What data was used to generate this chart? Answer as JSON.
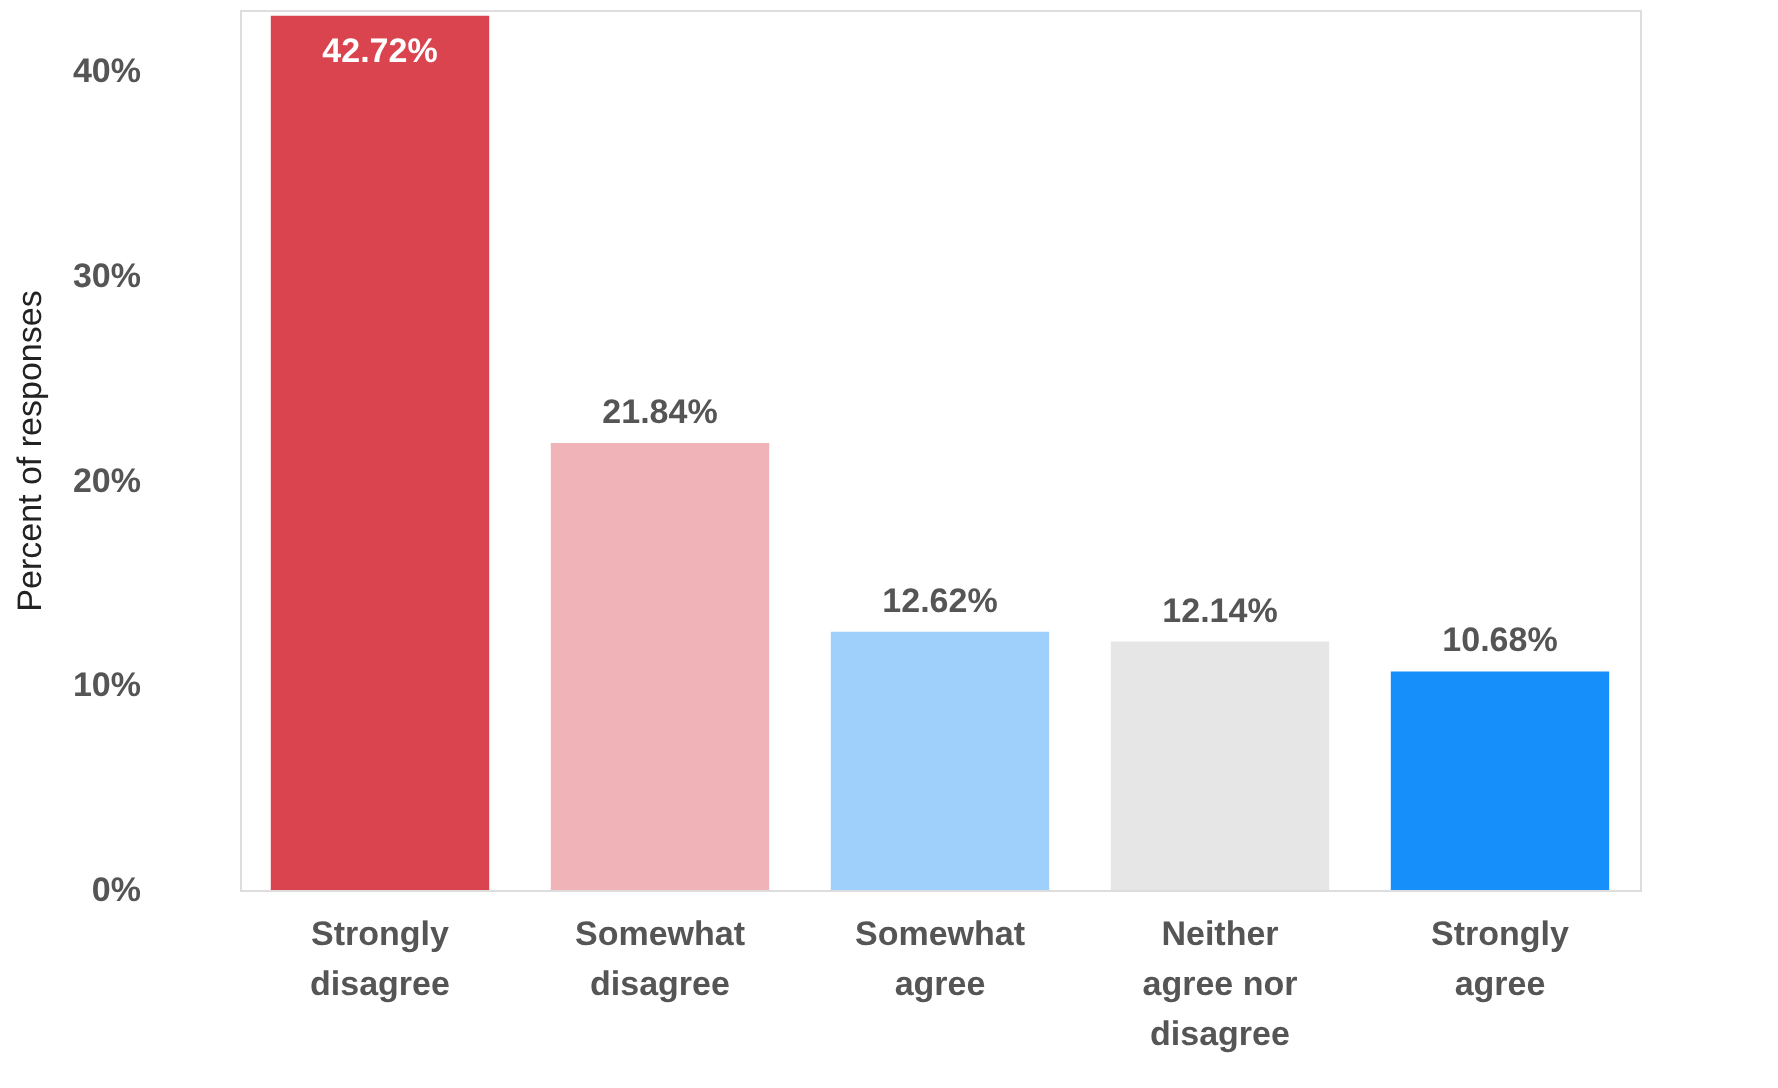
{
  "chart_data": {
    "type": "bar",
    "ylabel": "Percent of responses",
    "categories": [
      "Strongly disagree",
      "Somewhat disagree",
      "Somewhat agree",
      "Neither agree nor disagree",
      "Strongly agree"
    ],
    "values": [
      42.72,
      21.84,
      12.62,
      12.14,
      10.68
    ],
    "colors": [
      "#d9444f",
      "#f0b3b8",
      "#9fd0fb",
      "#e6e6e6",
      "#168ffa"
    ],
    "value_labels": [
      "42.72%",
      "21.84%",
      "12.62%",
      "12.14%",
      "10.68%"
    ],
    "ylim": [
      0,
      43
    ],
    "yticks": [
      {
        "value": 0,
        "label": "0%"
      },
      {
        "value": 10,
        "label": "10%"
      },
      {
        "value": 20,
        "label": "20%"
      },
      {
        "value": 30,
        "label": "30%"
      },
      {
        "value": 40,
        "label": "40%"
      }
    ],
    "grid": false
  }
}
